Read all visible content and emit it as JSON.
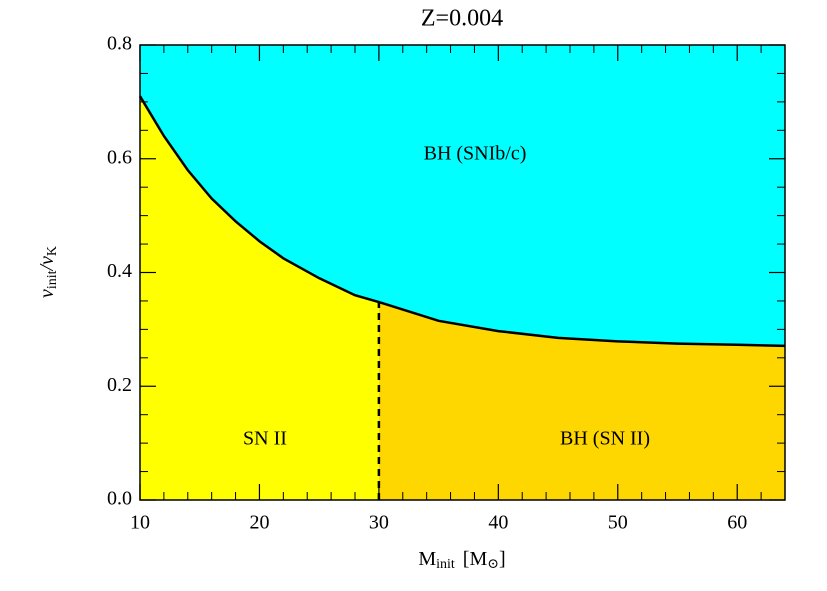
{
  "chart_data": {
    "type": "region",
    "title": "Z=0.004",
    "x_label": [
      "M",
      "init",
      "[M",
      "⊙",
      "]"
    ],
    "y_label": [
      "v",
      "init",
      "/v",
      "K"
    ],
    "boundary": {
      "color": "#000000",
      "x": [
        10,
        12,
        14,
        16,
        18,
        20,
        22,
        25,
        28,
        30,
        35,
        40,
        45,
        50,
        55,
        60,
        64
      ],
      "values": [
        0.71,
        0.64,
        0.58,
        0.53,
        0.49,
        0.455,
        0.425,
        0.39,
        0.36,
        0.348,
        0.315,
        0.297,
        0.285,
        0.279,
        0.275,
        0.273,
        0.271
      ]
    },
    "divider": {
      "x": 30,
      "style": "dashed",
      "color": "#000000"
    },
    "regions": [
      {
        "name": "BH (SNIb/c)",
        "color": "#00ffff",
        "side": "above"
      },
      {
        "name": "SN II",
        "color": "#ffff00",
        "side": "below-left"
      },
      {
        "name": "BH (SN II)",
        "color": "#ffd700",
        "side": "below-right"
      }
    ],
    "xlim": [
      10,
      64
    ],
    "ylim": [
      0,
      0.8
    ],
    "xticks": [
      10,
      20,
      30,
      40,
      50,
      60
    ],
    "yticks": [
      {
        "value": 0,
        "label": "0.0"
      },
      0.2,
      0.4,
      0.6,
      0.8
    ],
    "xminorticks": [
      12,
      14,
      16,
      18,
      22,
      24,
      26,
      28,
      32,
      34,
      36,
      38,
      42,
      44,
      46,
      48,
      52,
      54,
      56,
      58,
      62,
      64
    ],
    "yminorticks": [
      0.05,
      0.1,
      0.15,
      0.25,
      0.3,
      0.35,
      0.45,
      0.5,
      0.55,
      0.65,
      0.7,
      0.75
    ]
  }
}
